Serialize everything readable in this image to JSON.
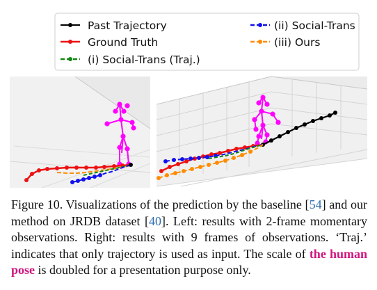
{
  "legend": {
    "items": [
      {
        "label": "Past Trajectory",
        "color": "#000000",
        "style": "solid"
      },
      {
        "label": "Ground Truth",
        "color": "#ee1111",
        "style": "solid"
      },
      {
        "label": "(i) Social-Trans (Traj.)",
        "color": "#118811",
        "style": "dashed"
      },
      {
        "label": "(ii) Social-Trans",
        "color": "#1111ee",
        "style": "dashed"
      },
      {
        "label": "(iii) Ours",
        "color": "#ff8c00",
        "style": "dashed"
      }
    ]
  },
  "caption": {
    "label": "Figure 10.",
    "t1": "Visualizations of the prediction by the baseline [",
    "ref1": "54",
    "t2": "] and our method on JRDB dataset [",
    "ref2": "40",
    "t3": "]. Left: results with 2-frame momentary observations. Right: results with 9 frames of observations. ‘Traj.’ indicates that only trajectory is used as input. The scale of ",
    "highlight": "the human pose",
    "t4": " is doubled for a presentation purpose only."
  },
  "colors": {
    "past": "#000000",
    "ground_truth": "#ee1111",
    "social_traj": "#118811",
    "social_trans": "#1111ee",
    "ours": "#ff8c00",
    "pose": "#ff00ff",
    "pose_highlight": "#d0157f",
    "ref_link": "#2f6db4"
  }
}
